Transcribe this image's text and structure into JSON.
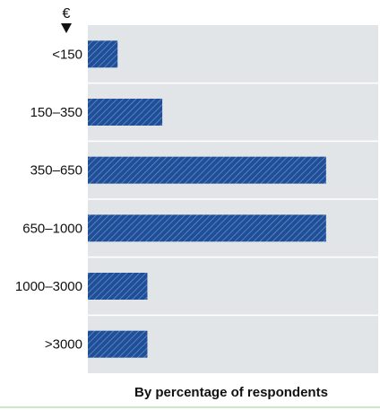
{
  "chart_data": {
    "type": "bar",
    "orientation": "horizontal",
    "axis_unit_label": "€",
    "categories": [
      "<150",
      "150–350",
      "350–650",
      "650–1000",
      "1000–3000",
      ">3000"
    ],
    "values": [
      4,
      10,
      32,
      32,
      8,
      8
    ],
    "xlabel": "By percentage of respondents",
    "ylabel": "",
    "xlim": [
      0,
      39
    ],
    "grid": true,
    "colors": {
      "bar_fill": "#1f4f99",
      "bar_hatch": "#6f94c8",
      "plot_bg": "#e2e5e8",
      "grid": "#ffffff",
      "text": "#111111"
    }
  }
}
